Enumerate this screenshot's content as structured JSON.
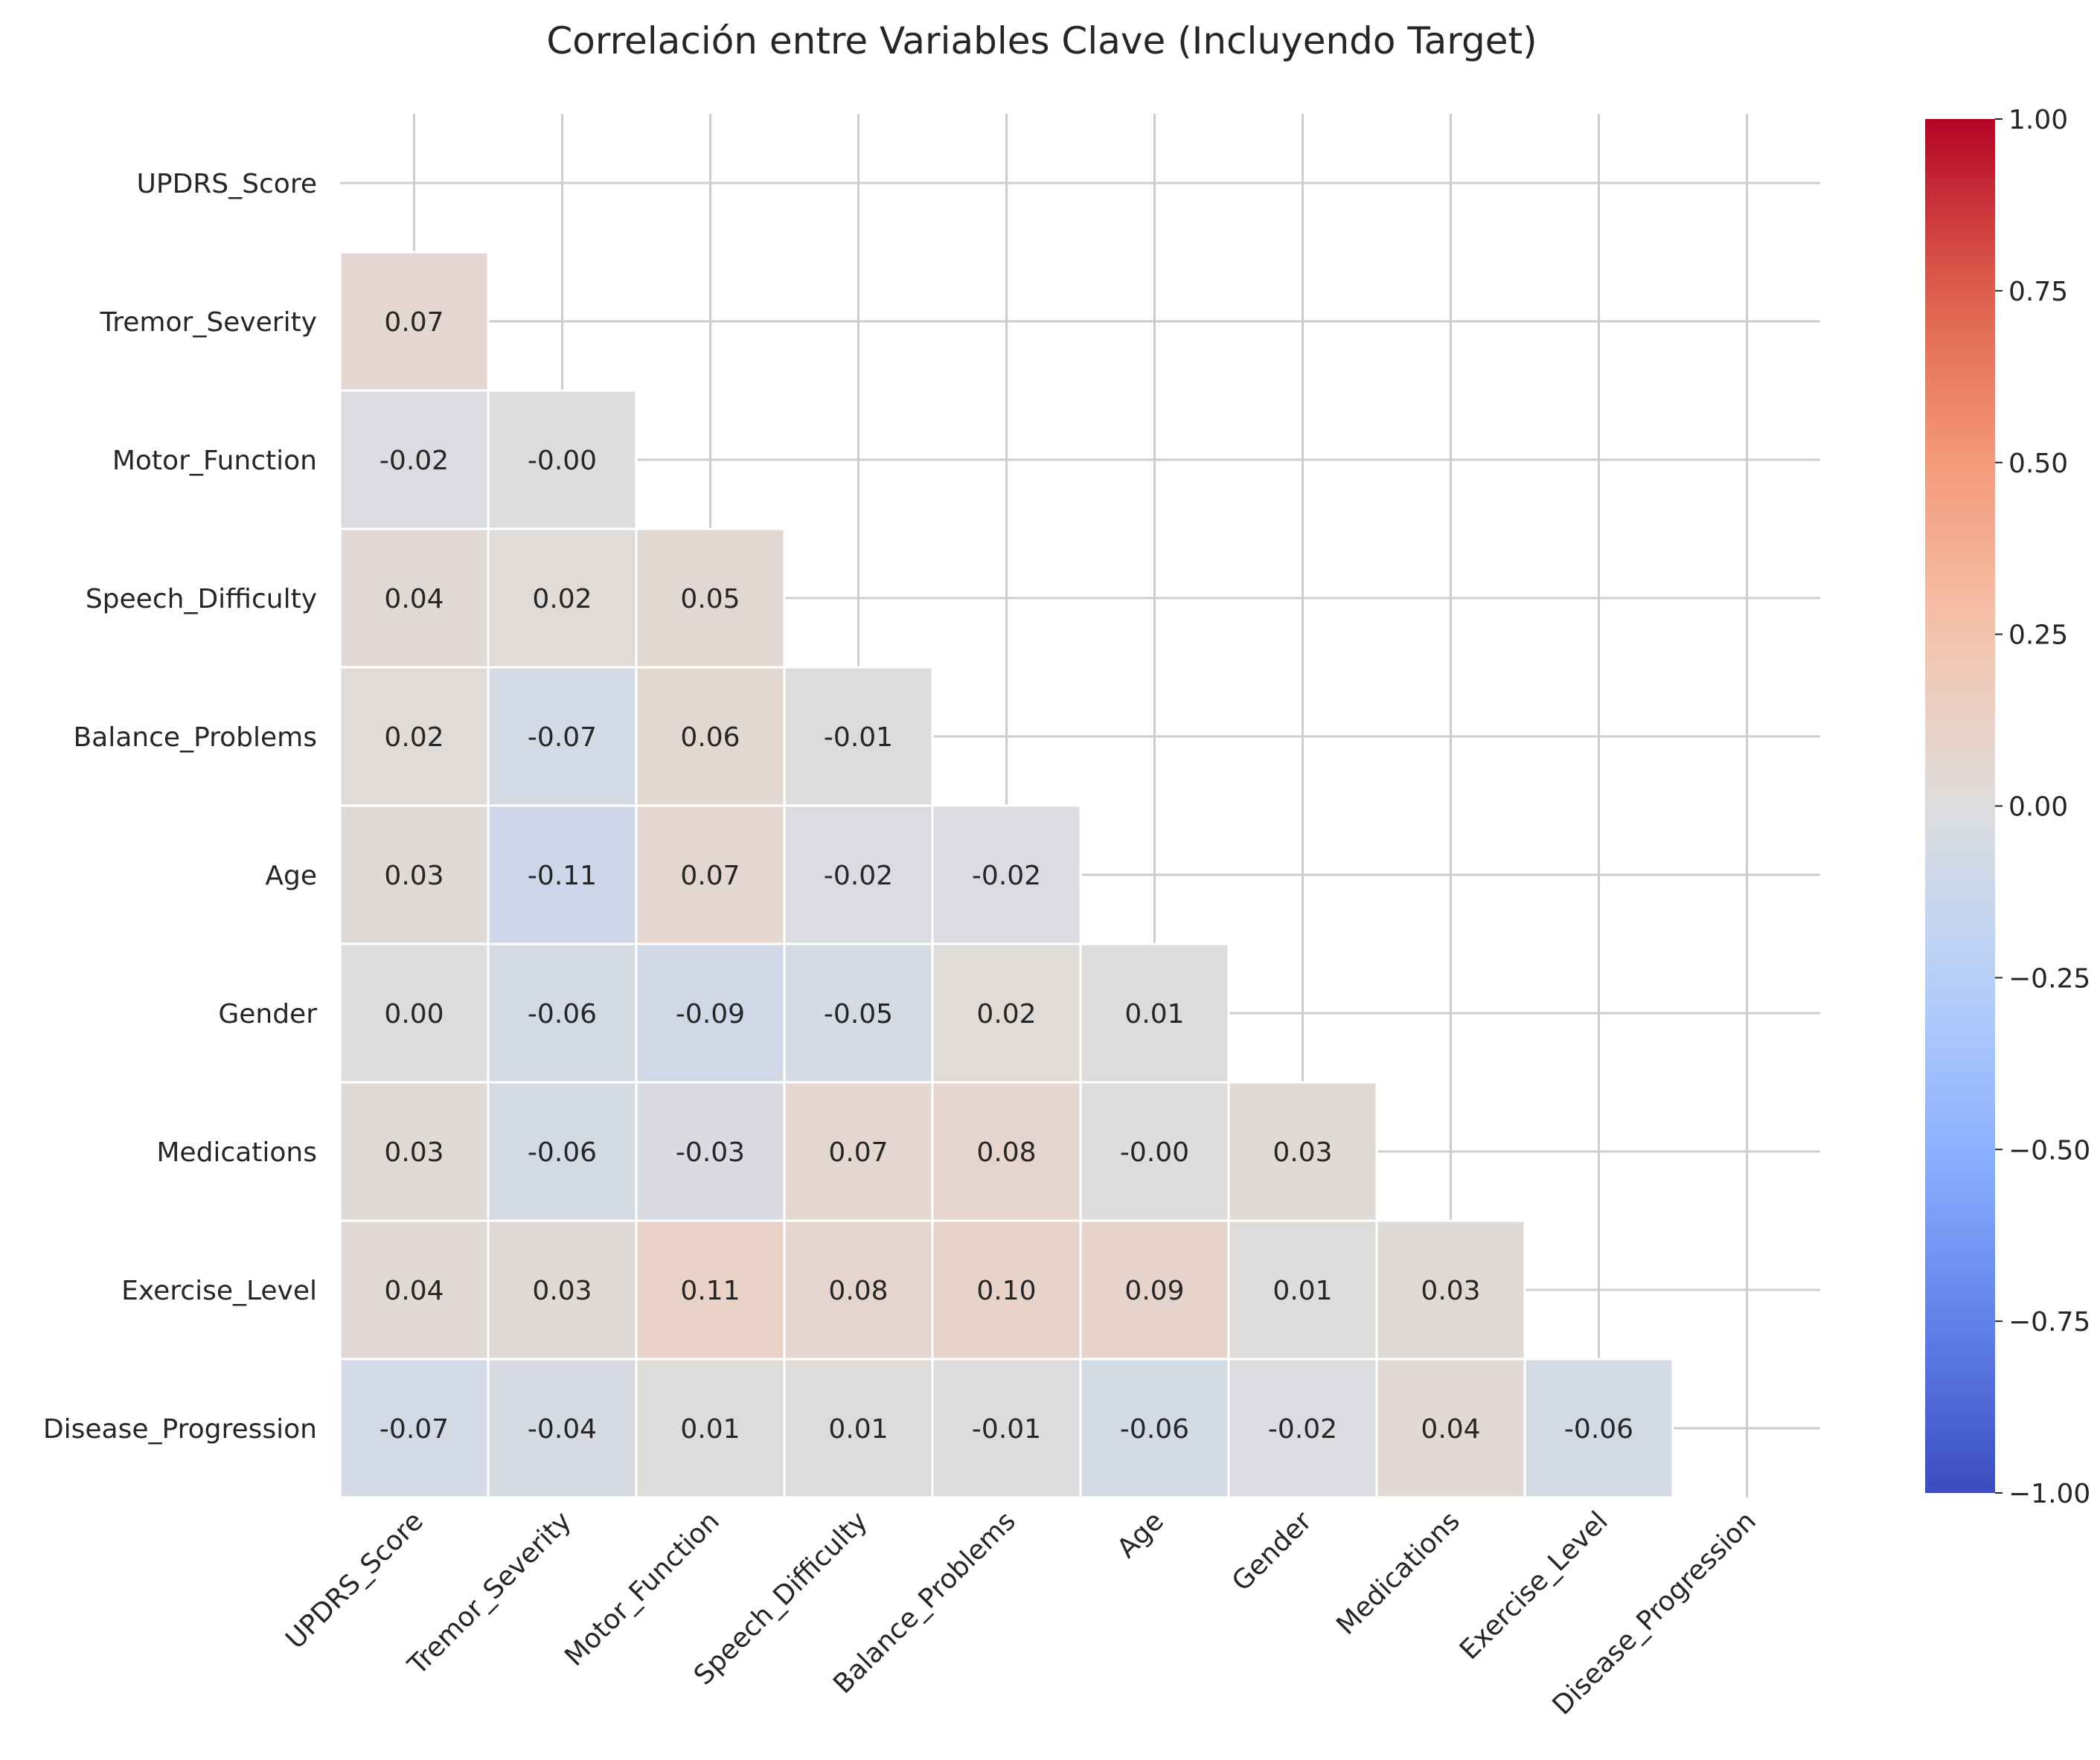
{
  "chart_data": {
    "type": "heatmap",
    "title": "Correlación entre Variables Clave (Incluyendo Target)",
    "variables": [
      "UPDRS_Score",
      "Tremor_Severity",
      "Motor_Function",
      "Speech_Difficulty",
      "Balance_Problems",
      "Age",
      "Gender",
      "Medications",
      "Exercise_Level",
      "Disease_Progression"
    ],
    "mask": "upper-triangle-and-diagonal",
    "cells": [
      {
        "row": "Tremor_Severity",
        "col": "UPDRS_Score",
        "value": 0.07,
        "label": "0.07"
      },
      {
        "row": "Motor_Function",
        "col": "UPDRS_Score",
        "value": -0.02,
        "label": "-0.02"
      },
      {
        "row": "Motor_Function",
        "col": "Tremor_Severity",
        "value": -0.0,
        "label": "-0.00"
      },
      {
        "row": "Speech_Difficulty",
        "col": "UPDRS_Score",
        "value": 0.04,
        "label": "0.04"
      },
      {
        "row": "Speech_Difficulty",
        "col": "Tremor_Severity",
        "value": 0.02,
        "label": "0.02"
      },
      {
        "row": "Speech_Difficulty",
        "col": "Motor_Function",
        "value": 0.05,
        "label": "0.05"
      },
      {
        "row": "Balance_Problems",
        "col": "UPDRS_Score",
        "value": 0.02,
        "label": "0.02"
      },
      {
        "row": "Balance_Problems",
        "col": "Tremor_Severity",
        "value": -0.07,
        "label": "-0.07"
      },
      {
        "row": "Balance_Problems",
        "col": "Motor_Function",
        "value": 0.06,
        "label": "0.06"
      },
      {
        "row": "Balance_Problems",
        "col": "Speech_Difficulty",
        "value": -0.01,
        "label": "-0.01"
      },
      {
        "row": "Age",
        "col": "UPDRS_Score",
        "value": 0.03,
        "label": "0.03"
      },
      {
        "row": "Age",
        "col": "Tremor_Severity",
        "value": -0.11,
        "label": "-0.11"
      },
      {
        "row": "Age",
        "col": "Motor_Function",
        "value": 0.07,
        "label": "0.07"
      },
      {
        "row": "Age",
        "col": "Speech_Difficulty",
        "value": -0.02,
        "label": "-0.02"
      },
      {
        "row": "Age",
        "col": "Balance_Problems",
        "value": -0.02,
        "label": "-0.02"
      },
      {
        "row": "Gender",
        "col": "UPDRS_Score",
        "value": 0.0,
        "label": "0.00"
      },
      {
        "row": "Gender",
        "col": "Tremor_Severity",
        "value": -0.06,
        "label": "-0.06"
      },
      {
        "row": "Gender",
        "col": "Motor_Function",
        "value": -0.09,
        "label": "-0.09"
      },
      {
        "row": "Gender",
        "col": "Speech_Difficulty",
        "value": -0.05,
        "label": "-0.05"
      },
      {
        "row": "Gender",
        "col": "Balance_Problems",
        "value": 0.02,
        "label": "0.02"
      },
      {
        "row": "Gender",
        "col": "Age",
        "value": 0.01,
        "label": "0.01"
      },
      {
        "row": "Medications",
        "col": "UPDRS_Score",
        "value": 0.03,
        "label": "0.03"
      },
      {
        "row": "Medications",
        "col": "Tremor_Severity",
        "value": -0.06,
        "label": "-0.06"
      },
      {
        "row": "Medications",
        "col": "Motor_Function",
        "value": -0.03,
        "label": "-0.03"
      },
      {
        "row": "Medications",
        "col": "Speech_Difficulty",
        "value": 0.07,
        "label": "0.07"
      },
      {
        "row": "Medications",
        "col": "Balance_Problems",
        "value": 0.08,
        "label": "0.08"
      },
      {
        "row": "Medications",
        "col": "Age",
        "value": -0.0,
        "label": "-0.00"
      },
      {
        "row": "Medications",
        "col": "Gender",
        "value": 0.03,
        "label": "0.03"
      },
      {
        "row": "Exercise_Level",
        "col": "UPDRS_Score",
        "value": 0.04,
        "label": "0.04"
      },
      {
        "row": "Exercise_Level",
        "col": "Tremor_Severity",
        "value": 0.03,
        "label": "0.03"
      },
      {
        "row": "Exercise_Level",
        "col": "Motor_Function",
        "value": 0.11,
        "label": "0.11"
      },
      {
        "row": "Exercise_Level",
        "col": "Speech_Difficulty",
        "value": 0.08,
        "label": "0.08"
      },
      {
        "row": "Exercise_Level",
        "col": "Balance_Problems",
        "value": 0.1,
        "label": "0.10"
      },
      {
        "row": "Exercise_Level",
        "col": "Age",
        "value": 0.09,
        "label": "0.09"
      },
      {
        "row": "Exercise_Level",
        "col": "Gender",
        "value": 0.01,
        "label": "0.01"
      },
      {
        "row": "Exercise_Level",
        "col": "Medications",
        "value": 0.03,
        "label": "0.03"
      },
      {
        "row": "Disease_Progression",
        "col": "UPDRS_Score",
        "value": -0.07,
        "label": "-0.07"
      },
      {
        "row": "Disease_Progression",
        "col": "Tremor_Severity",
        "value": -0.04,
        "label": "-0.04"
      },
      {
        "row": "Disease_Progression",
        "col": "Motor_Function",
        "value": 0.01,
        "label": "0.01"
      },
      {
        "row": "Disease_Progression",
        "col": "Speech_Difficulty",
        "value": 0.01,
        "label": "0.01"
      },
      {
        "row": "Disease_Progression",
        "col": "Balance_Problems",
        "value": -0.01,
        "label": "-0.01"
      },
      {
        "row": "Disease_Progression",
        "col": "Age",
        "value": -0.06,
        "label": "-0.06"
      },
      {
        "row": "Disease_Progression",
        "col": "Gender",
        "value": -0.02,
        "label": "-0.02"
      },
      {
        "row": "Disease_Progression",
        "col": "Medications",
        "value": 0.04,
        "label": "0.04"
      },
      {
        "row": "Disease_Progression",
        "col": "Exercise_Level",
        "value": -0.06,
        "label": "-0.06"
      }
    ],
    "colorbar": {
      "colormap": "coolwarm",
      "vmin": -1.0,
      "vmax": 1.0,
      "ticks": [
        1.0,
        0.75,
        0.5,
        0.25,
        0.0,
        -0.25,
        -0.5,
        -0.75,
        -1.0
      ],
      "tick_labels": [
        "1.00",
        "0.75",
        "0.50",
        "0.25",
        "0.00",
        "−0.25",
        "−0.50",
        "−0.75",
        "−1.00"
      ]
    },
    "grid": true,
    "colors": {
      "grid": "#cccccc",
      "cell_border": "#ffffff",
      "text": "#262626",
      "background": "#ffffff"
    }
  }
}
